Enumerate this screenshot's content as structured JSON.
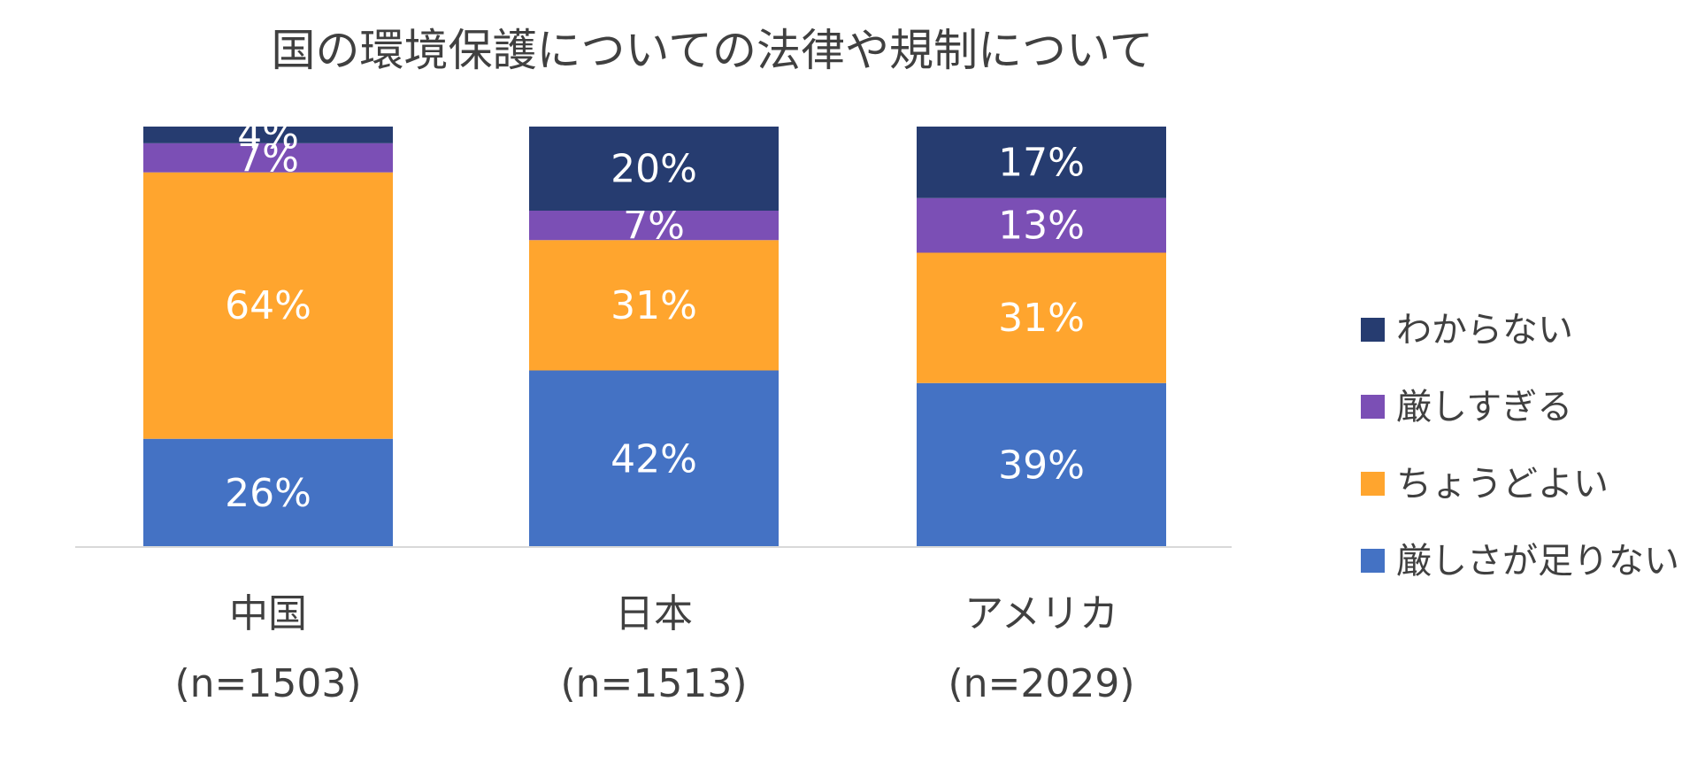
{
  "chart_data": {
    "type": "bar",
    "stacked": true,
    "title": "国の環境保護についての法律や規制について",
    "categories": [
      "中国",
      "日本",
      "アメリカ"
    ],
    "category_sublabels": [
      "(n=1503)",
      "(n=1513)",
      "(n=2029)"
    ],
    "ylim": [
      0,
      100
    ],
    "series": [
      {
        "name": "厳しさが足りない",
        "values": [
          26,
          42,
          39
        ],
        "labels": [
          "26%",
          "42%",
          "39%"
        ],
        "color": "#4472C4"
      },
      {
        "name": "ちょうどよい",
        "values": [
          64,
          31,
          31
        ],
        "labels": [
          "64%",
          "31%",
          "31%"
        ],
        "color": "#FFA52E"
      },
      {
        "name": "厳しすぎる",
        "values": [
          7,
          7,
          13
        ],
        "labels": [
          "7%",
          "7%",
          "13%"
        ],
        "color": "#7B4FB5"
      },
      {
        "name": "わからない",
        "values": [
          4,
          20,
          17
        ],
        "labels": [
          "4%",
          "20%",
          "17%"
        ],
        "color": "#263C70"
      }
    ],
    "legend_order": [
      "わからない",
      "厳しすぎる",
      "ちょうどよい",
      "厳しさが足りない"
    ],
    "legend_position": "right",
    "grid": false
  }
}
